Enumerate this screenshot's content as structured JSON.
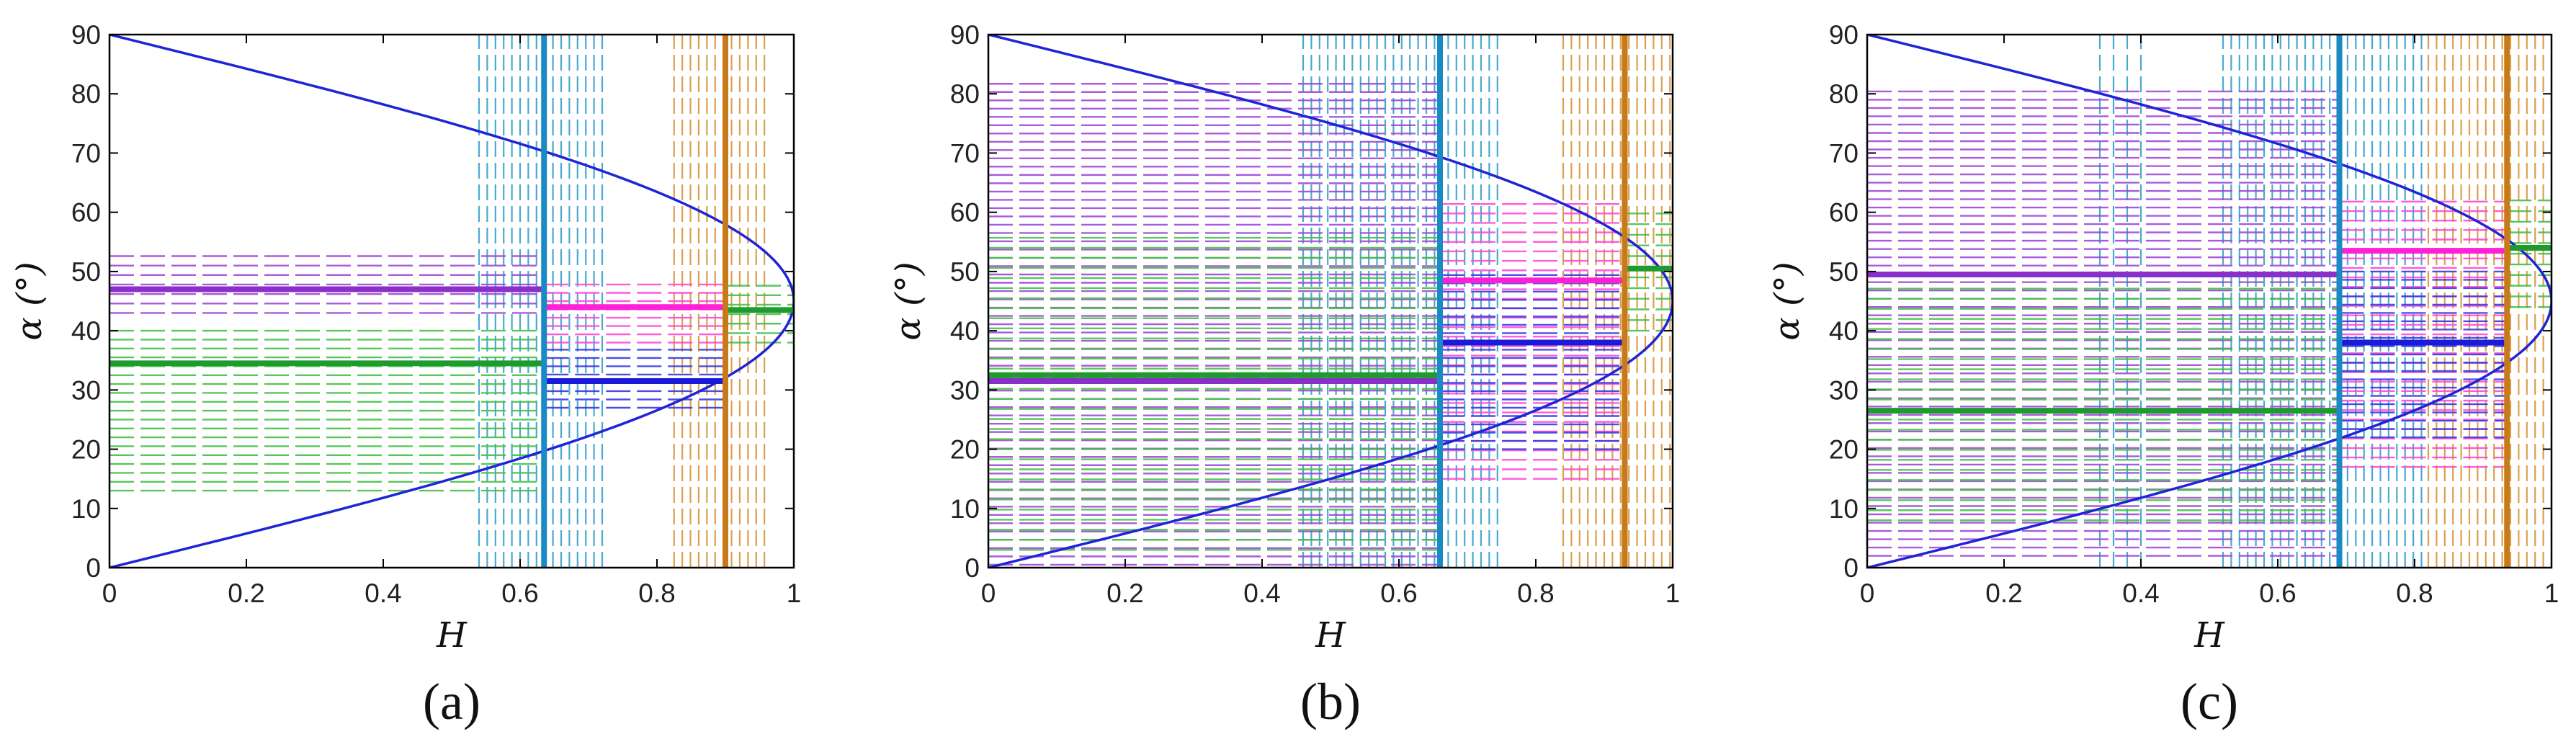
{
  "colors": {
    "curve": "#1f24d6",
    "purple": "#8a2fc8",
    "green": "#1f9a2f",
    "lightblue": "#1a8ac4",
    "blue": "#1a1ad8",
    "magenta": "#ff1fd6",
    "orange": "#c87a1a",
    "dashed_green": "#46c14a",
    "dashed_purple": "#a04ad6",
    "dashed_magenta": "#ff4ad6",
    "dashed_lightblue": "#36a0cc",
    "dashed_orange": "#d8963a",
    "dashed_blue": "#3a3ae0"
  },
  "chart_data": [
    {
      "type": "line",
      "caption": "(a)",
      "xlabel": "H",
      "ylabel": "α (°)",
      "xlim": [
        0,
        1
      ],
      "ylim": [
        0,
        90
      ],
      "xticks": [
        "0",
        "0.2",
        "0.4",
        "0.6",
        "0.8",
        "1"
      ],
      "yticks": [
        "0",
        "10",
        "20",
        "30",
        "40",
        "50",
        "60",
        "70",
        "80",
        "90"
      ],
      "curve": {
        "description": "H = sin(2α) boundary",
        "color_key": "curve"
      },
      "vertical_lines": [
        {
          "x": 0.635,
          "color_key": "lightblue"
        },
        {
          "x": 0.9,
          "color_key": "orange"
        }
      ],
      "horizontal_segments": [
        {
          "x0": 0,
          "x1": 0.635,
          "y": 47,
          "color_key": "purple"
        },
        {
          "x0": 0,
          "x1": 0.635,
          "y": 34.5,
          "color_key": "green"
        },
        {
          "x0": 0.635,
          "x1": 0.9,
          "y": 44,
          "color_key": "magenta"
        },
        {
          "x0": 0.635,
          "x1": 0.9,
          "y": 31.5,
          "color_key": "blue"
        },
        {
          "x0": 0.9,
          "x1": 1,
          "y": 43.5,
          "color_key": "green"
        }
      ],
      "dashed_horizontal_bands": [
        {
          "x0": 0,
          "x1": 0.635,
          "y0": 13,
          "y1": 40,
          "step": 1.5,
          "color_key": "dashed_green"
        },
        {
          "x0": 0,
          "x1": 0.635,
          "y0": 43,
          "y1": 53,
          "step": 1.6,
          "color_key": "dashed_purple"
        },
        {
          "x0": 0.635,
          "x1": 0.9,
          "y0": 38,
          "y1": 48,
          "step": 1.4,
          "color_key": "dashed_magenta"
        },
        {
          "x0": 0.635,
          "x1": 0.9,
          "y0": 27,
          "y1": 37,
          "step": 1.4,
          "color_key": "dashed_blue"
        },
        {
          "x0": 0.9,
          "x1": 1,
          "y0": 38,
          "y1": 48,
          "step": 1.6,
          "color_key": "dashed_green"
        }
      ],
      "dashed_vertical_bands": [
        {
          "x0": 0.54,
          "x1": 0.73,
          "y0": 0,
          "y1": 90,
          "step": 0.012,
          "color_key": "dashed_lightblue"
        },
        {
          "x0": 0.825,
          "x1": 0.96,
          "y0": 0,
          "y1": 90,
          "step": 0.012,
          "color_key": "dashed_orange"
        }
      ]
    },
    {
      "type": "line",
      "caption": "(b)",
      "xlabel": "H",
      "ylabel": "α (°)",
      "xlim": [
        0,
        1
      ],
      "ylim": [
        0,
        90
      ],
      "xticks": [
        "0",
        "0.2",
        "0.4",
        "0.6",
        "0.8",
        "1"
      ],
      "yticks": [
        "0",
        "10",
        "20",
        "30",
        "40",
        "50",
        "60",
        "70",
        "80",
        "90"
      ],
      "curve": {
        "description": "H = sin(2α) boundary",
        "color_key": "curve"
      },
      "vertical_lines": [
        {
          "x": 0.66,
          "color_key": "lightblue"
        },
        {
          "x": 0.93,
          "color_key": "orange"
        }
      ],
      "horizontal_segments": [
        {
          "x0": 0,
          "x1": 0.66,
          "y": 31.5,
          "color_key": "purple"
        },
        {
          "x0": 0,
          "x1": 0.66,
          "y": 32.5,
          "color_key": "green"
        },
        {
          "x0": 0.66,
          "x1": 0.93,
          "y": 48.5,
          "color_key": "magenta"
        },
        {
          "x0": 0.66,
          "x1": 0.93,
          "y": 38,
          "color_key": "blue"
        },
        {
          "x0": 0.93,
          "x1": 1,
          "y": 50.5,
          "color_key": "green"
        }
      ],
      "dashed_horizontal_bands": [
        {
          "x0": 0,
          "x1": 0.66,
          "y0": 0.5,
          "y1": 83,
          "step": 1.4,
          "color_key": "dashed_purple"
        },
        {
          "x0": 0,
          "x1": 0.66,
          "y0": 3,
          "y1": 57,
          "step": 1.7,
          "color_key": "dashed_green"
        },
        {
          "x0": 0.66,
          "x1": 0.93,
          "y0": 15,
          "y1": 62,
          "step": 1.6,
          "color_key": "dashed_magenta"
        },
        {
          "x0": 0.66,
          "x1": 0.93,
          "y0": 20,
          "y1": 50,
          "step": 1.4,
          "color_key": "dashed_blue"
        },
        {
          "x0": 0.93,
          "x1": 1,
          "y0": 40,
          "y1": 60,
          "step": 1.8,
          "color_key": "dashed_green"
        }
      ],
      "dashed_vertical_bands": [
        {
          "x0": 0.46,
          "x1": 0.66,
          "y0": 0,
          "y1": 90,
          "step": 0.012,
          "color_key": "dashed_lightblue"
        },
        {
          "x0": 0.66,
          "x1": 0.75,
          "y0": 0,
          "y1": 90,
          "step": 0.012,
          "color_key": "dashed_lightblue"
        },
        {
          "x0": 0.84,
          "x1": 1,
          "y0": 0,
          "y1": 90,
          "step": 0.012,
          "color_key": "dashed_orange"
        }
      ]
    },
    {
      "type": "line",
      "caption": "(c)",
      "xlabel": "H",
      "ylabel": "α (°)",
      "xlim": [
        0,
        1
      ],
      "ylim": [
        0,
        90
      ],
      "xticks": [
        "0",
        "0.2",
        "0.4",
        "0.6",
        "0.8",
        "1"
      ],
      "yticks": [
        "0",
        "10",
        "20",
        "30",
        "40",
        "50",
        "60",
        "70",
        "80",
        "90"
      ],
      "curve": {
        "description": "H = sin(2α) boundary",
        "color_key": "curve"
      },
      "vertical_lines": [
        {
          "x": 0.69,
          "color_key": "lightblue"
        },
        {
          "x": 0.935,
          "color_key": "orange"
        }
      ],
      "horizontal_segments": [
        {
          "x0": 0,
          "x1": 0.69,
          "y": 49.5,
          "color_key": "purple"
        },
        {
          "x0": 0,
          "x1": 0.69,
          "y": 26.5,
          "color_key": "green"
        },
        {
          "x0": 0.69,
          "x1": 0.935,
          "y": 53.5,
          "color_key": "magenta"
        },
        {
          "x0": 0.69,
          "x1": 0.935,
          "y": 38,
          "color_key": "blue"
        },
        {
          "x0": 0.935,
          "x1": 1,
          "y": 54,
          "color_key": "green"
        }
      ],
      "dashed_horizontal_bands": [
        {
          "x0": 0,
          "x1": 0.69,
          "y0": 2,
          "y1": 81,
          "step": 1.4,
          "color_key": "dashed_purple"
        },
        {
          "x0": 0,
          "x1": 0.69,
          "y0": 8,
          "y1": 48,
          "step": 1.7,
          "color_key": "dashed_green"
        },
        {
          "x0": 0.69,
          "x1": 0.935,
          "y0": 17,
          "y1": 63,
          "step": 1.6,
          "color_key": "dashed_magenta"
        },
        {
          "x0": 0.69,
          "x1": 0.935,
          "y0": 22,
          "y1": 50,
          "step": 1.4,
          "color_key": "dashed_blue"
        },
        {
          "x0": 0.935,
          "x1": 1,
          "y0": 44,
          "y1": 62,
          "step": 1.8,
          "color_key": "dashed_green"
        }
      ],
      "dashed_vertical_bands": [
        {
          "x0": 0.34,
          "x1": 0.4,
          "y0": 0,
          "y1": 90,
          "step": 0.02,
          "color_key": "dashed_lightblue"
        },
        {
          "x0": 0.52,
          "x1": 0.69,
          "y0": 0,
          "y1": 90,
          "step": 0.012,
          "color_key": "dashed_lightblue"
        },
        {
          "x0": 0.69,
          "x1": 0.82,
          "y0": 0,
          "y1": 90,
          "step": 0.012,
          "color_key": "dashed_lightblue"
        },
        {
          "x0": 0.82,
          "x1": 1,
          "y0": 0,
          "y1": 90,
          "step": 0.012,
          "color_key": "dashed_orange"
        }
      ]
    }
  ]
}
